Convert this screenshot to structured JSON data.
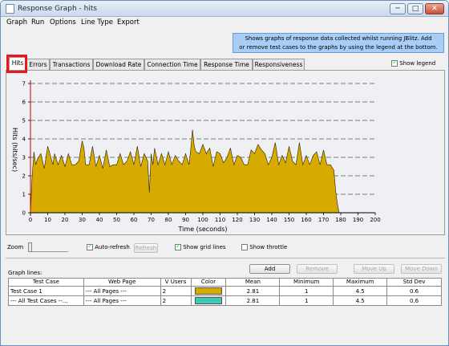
{
  "window": {
    "title": "Response Graph - hits",
    "min": "─",
    "max": "□",
    "close": "✕"
  },
  "menu": [
    "Graph",
    "Run",
    "Options",
    "Line Type",
    "Export"
  ],
  "info_text_1": "Shows graphs of response data collected whilst running JBlitz. Add",
  "info_text_2": "or remove test cases to the graphs by using the legend at the bottom.",
  "tabs": [
    "Hits",
    "Errors",
    "Transactions",
    "Download Rate",
    "Connection Time",
    "Response Time",
    "Responsiveness"
  ],
  "show_legend": "Show legend",
  "controls": {
    "zoom": "Zoom",
    "auto_refresh": "Auto-refresh",
    "refresh": "Refresh",
    "show_grid_lines": "Show grid lines",
    "show_throttle": "Show throttle"
  },
  "graph_lines": {
    "label": "Graph lines:",
    "add": "Add",
    "remove": "Remove",
    "move_up": "Move Up",
    "move_down": "Move Down",
    "columns": [
      "Test Case",
      "Web Page",
      "V Users",
      "Color",
      "Mean",
      "Minimum",
      "Maximum",
      "Std Dev"
    ],
    "rows": [
      {
        "test_case": "Test Case 1",
        "web_page": "--- All Pages ---",
        "vusers": "2",
        "color": "#d7aa00",
        "mean": "2.81",
        "min": "1",
        "max": "4.5",
        "std": "0.6"
      },
      {
        "test_case": "--- All Test Cases --...",
        "web_page": "--- All Pages ---",
        "vusers": "2",
        "color": "#3cc8b4",
        "mean": "2.81",
        "min": "1",
        "max": "4.5",
        "std": "0.6"
      }
    ]
  },
  "chart_data": {
    "type": "area",
    "xlabel": "Time (seconds)",
    "ylabel": "Hits (hits/sec)",
    "xlim": [
      0,
      200
    ],
    "ylim": [
      0,
      7
    ],
    "xticks": [
      0,
      10,
      20,
      30,
      40,
      50,
      60,
      70,
      80,
      90,
      100,
      110,
      120,
      130,
      140,
      150,
      160,
      170,
      180,
      190,
      200
    ],
    "yticks": [
      0,
      1,
      2,
      3,
      4,
      5,
      6,
      7
    ],
    "grid": true,
    "series_color": "#d7aa00",
    "x": [
      0,
      1,
      2,
      3,
      4,
      6,
      8,
      10,
      11,
      13,
      14,
      16,
      18,
      20,
      22,
      24,
      26,
      28,
      30,
      31,
      32,
      34,
      36,
      38,
      40,
      42,
      44,
      46,
      48,
      50,
      52,
      54,
      56,
      58,
      60,
      62,
      64,
      66,
      68,
      69,
      70,
      71,
      72,
      74,
      76,
      78,
      80,
      82,
      84,
      86,
      88,
      90,
      92,
      93,
      94,
      95,
      96,
      98,
      100,
      102,
      104,
      106,
      108,
      110,
      112,
      114,
      116,
      118,
      120,
      122,
      124,
      126,
      128,
      130,
      132,
      134,
      136,
      138,
      140,
      142,
      144,
      146,
      148,
      150,
      152,
      154,
      156,
      158,
      160,
      162,
      164,
      166,
      168,
      170,
      172,
      174,
      176,
      177,
      178,
      179
    ],
    "y": [
      0,
      2,
      3.3,
      2.6,
      2.9,
      3.2,
      2.4,
      3.6,
      3.3,
      2.6,
      3.2,
      2.6,
      3.1,
      2.5,
      3.2,
      2.6,
      2.6,
      2.8,
      3.9,
      3.5,
      2.6,
      2.6,
      3.6,
      2.5,
      3.1,
      2.4,
      3.4,
      2.5,
      2.6,
      2.6,
      3.2,
      2.6,
      2.8,
      3.3,
      2.6,
      3.6,
      2.5,
      3.2,
      2.8,
      1.1,
      3.2,
      2.6,
      3.5,
      2.6,
      3.2,
      2.6,
      3.3,
      2.6,
      3.1,
      2.8,
      2.6,
      3.2,
      2.6,
      3.5,
      4.5,
      3.6,
      3.3,
      3.2,
      3.7,
      3.2,
      3.5,
      2.5,
      3.3,
      3.2,
      2.7,
      3.0,
      3.5,
      2.6,
      3.1,
      3.0,
      2.6,
      2.6,
      3.4,
      3.2,
      3.7,
      3.4,
      3.2,
      2.6,
      3.0,
      3.8,
      2.6,
      3.1,
      2.7,
      3.6,
      2.8,
      2.6,
      3.8,
      2.6,
      3.1,
      2.6,
      3.1,
      3.3,
      2.6,
      3.4,
      2.6,
      2.6,
      2.3,
      1.2,
      0.5,
      0
    ]
  }
}
